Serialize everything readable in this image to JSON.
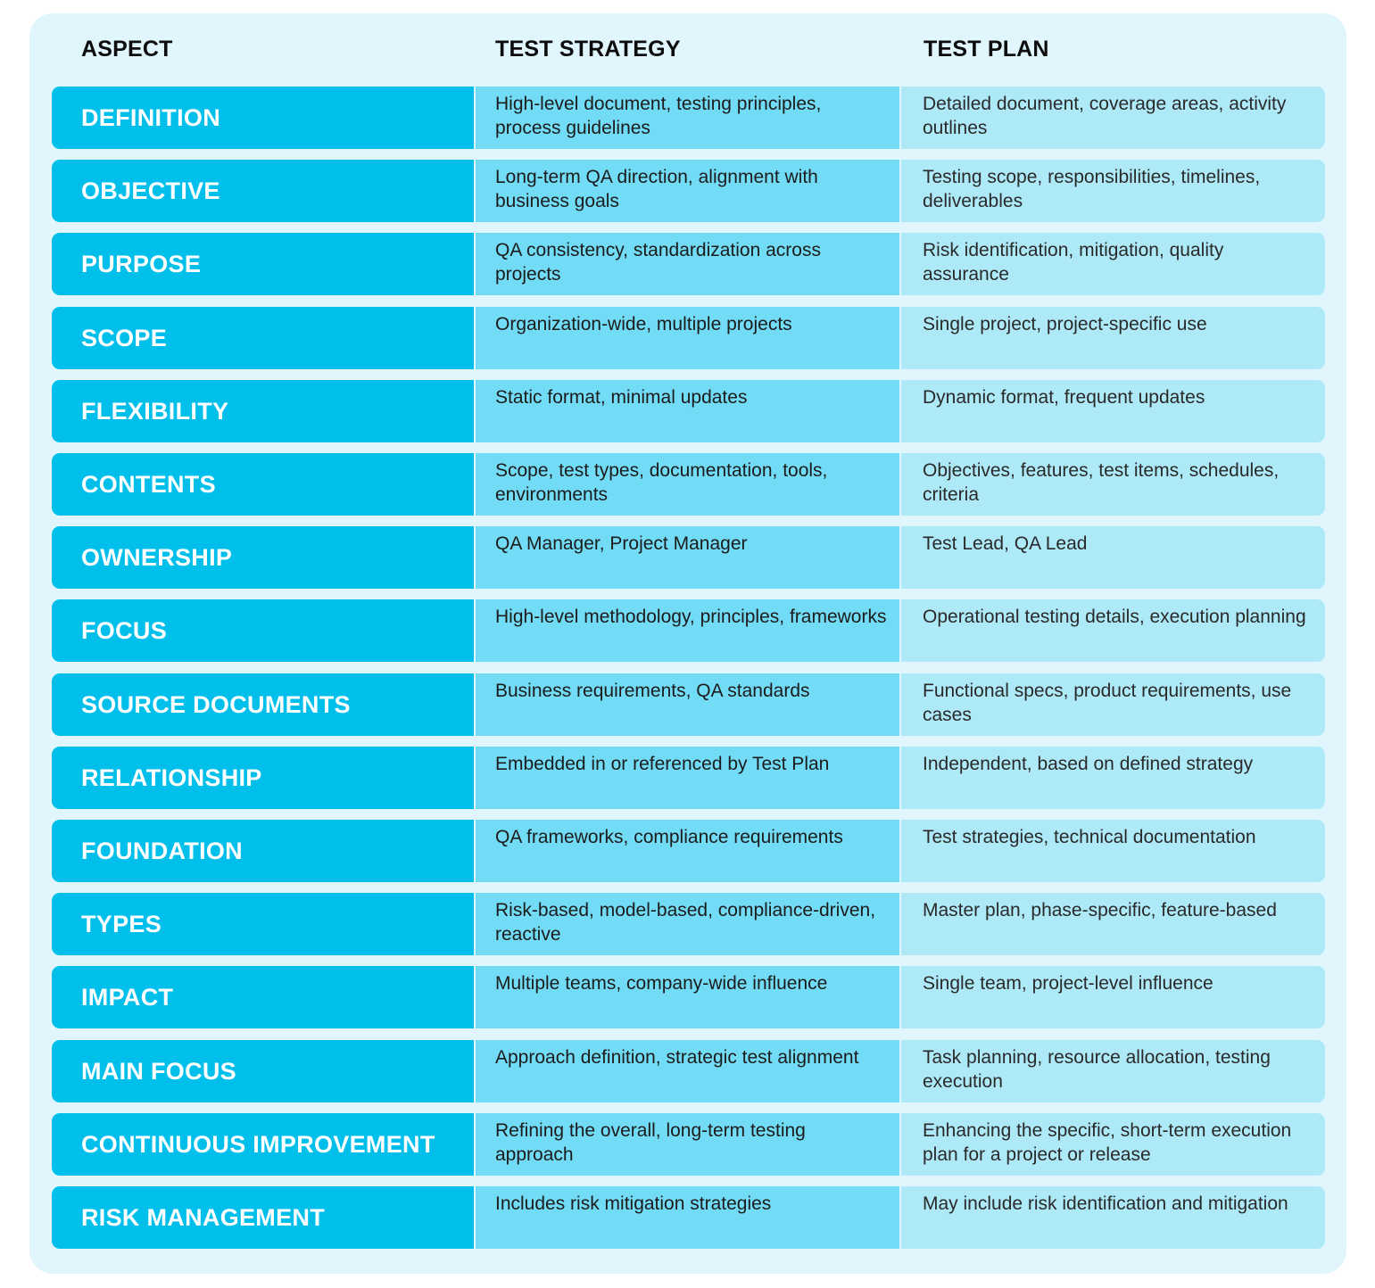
{
  "header": {
    "aspect": "ASPECT",
    "strategy": "TEST STRATEGY",
    "plan": "TEST PLAN"
  },
  "rows": [
    {
      "aspect": "DEFINITION",
      "strategy": "High-level document, testing principles, process guidelines",
      "plan": "Detailed document, coverage areas, activity outlines"
    },
    {
      "aspect": "OBJECTIVE",
      "strategy": "Long-term QA direction, alignment with business goals",
      "plan": "Testing scope, responsibilities, timelines, deliverables"
    },
    {
      "aspect": "PURPOSE",
      "strategy": "QA consistency, standardization across projects",
      "plan": "Risk identification, mitigation, quality assurance"
    },
    {
      "aspect": "SCOPE",
      "strategy": "Organization-wide, multiple projects",
      "plan": "Single project, project-specific use"
    },
    {
      "aspect": "FLEXIBILITY",
      "strategy": "Static format, minimal updates",
      "plan": "Dynamic format, frequent updates"
    },
    {
      "aspect": "CONTENTS",
      "strategy": "Scope, test types, documentation, tools, environments",
      "plan": "Objectives, features, test items, schedules, criteria"
    },
    {
      "aspect": "OWNERSHIP",
      "strategy": "QA Manager, Project Manager",
      "plan": "Test Lead, QA Lead"
    },
    {
      "aspect": "FOCUS",
      "strategy": "High-level methodology, principles, frameworks",
      "plan": "Operational testing details, execution planning"
    },
    {
      "aspect": "SOURCE DOCUMENTS",
      "strategy": "Business requirements, QA standards",
      "plan": "Functional specs, product requirements, use cases"
    },
    {
      "aspect": "RELATIONSHIP",
      "strategy": "Embedded in or referenced by Test Plan",
      "plan": "Independent, based on defined strategy"
    },
    {
      "aspect": "FOUNDATION",
      "strategy": "QA frameworks, compliance requirements",
      "plan": "Test strategies, technical documentation"
    },
    {
      "aspect": "TYPES",
      "strategy": "Risk-based, model-based, compliance-driven, reactive",
      "plan": "Master plan, phase-specific, feature-based"
    },
    {
      "aspect": "IMPACT",
      "strategy": "Multiple teams, company-wide influence",
      "plan": "Single team, project-level influence"
    },
    {
      "aspect": "MAIN FOCUS",
      "strategy": "Approach definition, strategic test alignment",
      "plan": "Task planning, resource allocation, testing execution"
    },
    {
      "aspect": "CONTINUOUS IMPROVEMENT",
      "strategy": "Refining the overall, long-term testing approach",
      "plan": "Enhancing the specific, short-term execution plan for a project or release"
    },
    {
      "aspect": "RISK MANAGEMENT",
      "strategy": "Includes risk mitigation strategies",
      "plan": "May include risk identification and mitigation"
    }
  ],
  "colors": {
    "panel_bg": "#e1f6fc",
    "aspect_bg": "#00bfeb",
    "strategy_bg": "#72dbf6",
    "plan_bg": "#aee9f8"
  }
}
